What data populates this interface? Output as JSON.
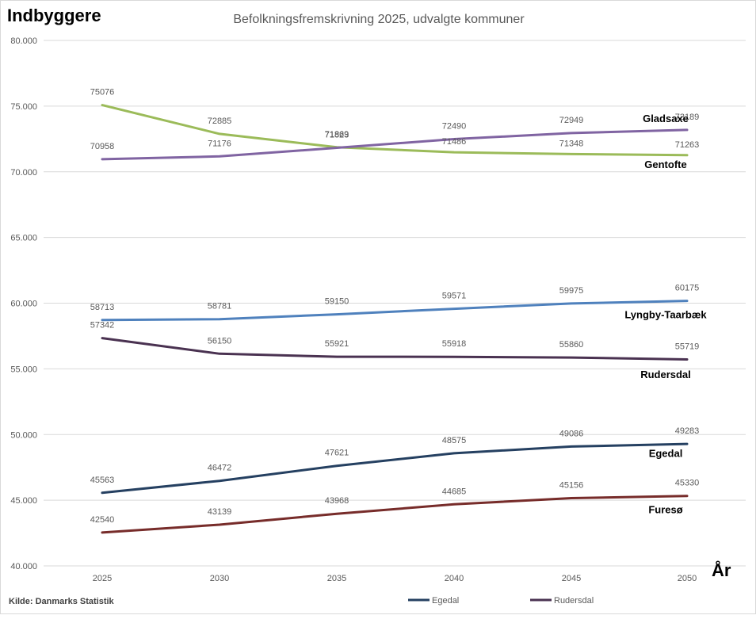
{
  "chart_data": {
    "type": "line",
    "title": "Befolkningsfremskrivning 2025, udvalgte kommuner",
    "ylabel": "Indbyggere",
    "xlabel": "År",
    "source": "Kilde: Danmarks Statistik",
    "ylim": [
      40000,
      80000
    ],
    "yticks": [
      "40.000",
      "45.000",
      "50.000",
      "55.000",
      "60.000",
      "65.000",
      "70.000",
      "75.000",
      "80.000"
    ],
    "ytick_values": [
      40000,
      45000,
      50000,
      55000,
      60000,
      65000,
      70000,
      75000,
      80000
    ],
    "categories": [
      "2025",
      "2030",
      "2035",
      "2040",
      "2045",
      "2050"
    ],
    "grid": true,
    "legend_position": "bottom",
    "legend": [
      "Egedal",
      "Rudersdal"
    ],
    "series": [
      {
        "name": "Gentofte",
        "color": "#9bbb59",
        "values": [
          75076,
          72885,
          71869,
          71486,
          71348,
          71263
        ],
        "label_pos": [
          "above",
          "above",
          "above",
          "below",
          "below",
          "below"
        ]
      },
      {
        "name": "Gladsaxe",
        "color": "#8064a2",
        "values": [
          70958,
          71176,
          71823,
          72490,
          72949,
          73189
        ],
        "label_pos": [
          "above",
          "above",
          "above",
          "above",
          "above",
          "above"
        ]
      },
      {
        "name": "Lyngby-Taarbæk",
        "color": "#4f81bd",
        "values": [
          58713,
          58781,
          59150,
          59571,
          59975,
          60175
        ],
        "label_pos": [
          "above",
          "above",
          "above",
          "above",
          "above",
          "above"
        ]
      },
      {
        "name": "Rudersdal",
        "color": "#4a3251",
        "values": [
          57342,
          56150,
          55921,
          55918,
          55860,
          55719
        ],
        "label_pos": [
          "above",
          "above",
          "above",
          "above",
          "above",
          "above"
        ]
      },
      {
        "name": "Egedal",
        "color": "#254061",
        "values": [
          45563,
          46472,
          47621,
          48575,
          49086,
          49283
        ],
        "label_pos": [
          "above",
          "above",
          "above",
          "above",
          "above",
          "above"
        ]
      },
      {
        "name": "Furesø",
        "color": "#772c2a",
        "values": [
          42540,
          43139,
          43968,
          44685,
          45156,
          45330
        ],
        "label_pos": [
          "above",
          "above",
          "above",
          "above",
          "above",
          "above"
        ]
      }
    ],
    "series_labels": [
      {
        "name": "Gladsaxe",
        "value": 73800
      },
      {
        "name": "Gentofte",
        "value": 70300
      },
      {
        "name": "Lyngby-Taarbæk",
        "value": 58850
      },
      {
        "name": "Rudersdal",
        "value": 54300
      },
      {
        "name": "Egedal",
        "value": 48300
      },
      {
        "name": "Furesø",
        "value": 44000
      }
    ]
  }
}
